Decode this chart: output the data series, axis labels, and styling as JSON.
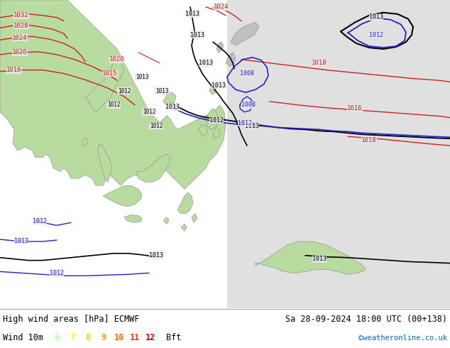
{
  "title_left": "High wind areas [hPa] ECMWF",
  "title_right": "Sa 28-09-2024 18:00 UTC (00+138)",
  "subtitle_left": "Wind 10m",
  "bft_label": "Bft",
  "bft_values": [
    "6",
    "7",
    "8",
    "9",
    "10",
    "11",
    "12"
  ],
  "bft_colors": [
    "#aaffaa",
    "#ffff00",
    "#ffcc00",
    "#ff9900",
    "#ff6600",
    "#ff3300",
    "#cc0000"
  ],
  "credit": "©weatheronline.co.uk",
  "credit_color": "#0066cc",
  "land_color": "#b8dba0",
  "sea_color_left": "#e8e8e8",
  "sea_color_right": "#d8d8d8",
  "text_color": "#000000",
  "figsize": [
    6.34,
    4.9
  ],
  "dpi": 100
}
